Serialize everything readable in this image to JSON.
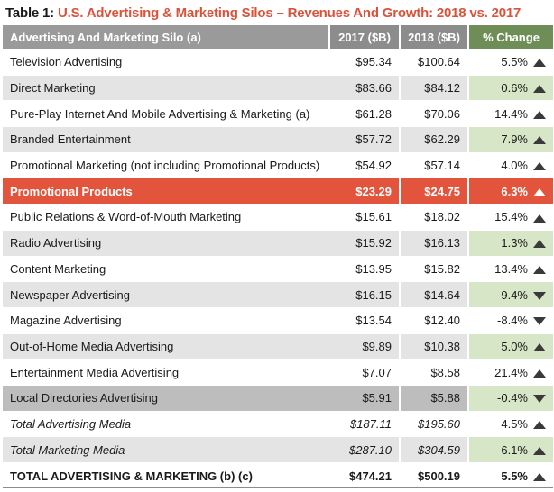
{
  "caption": {
    "lead": "Table 1:",
    "title": "U.S. Advertising & Marketing Silos – Revenues And Growth: 2018 vs. 2017"
  },
  "headers": {
    "silo": "Advertising And Marketing Silo (a)",
    "y2017": "2017 ($B)",
    "y2018": "2018 ($B)",
    "change": "% Change"
  },
  "colors": {
    "accent_red": "#e2543c",
    "header_gray": "#8c8c8c",
    "change_green": "#6f8e57",
    "shade_green": "#d6e6c6"
  },
  "rows": [
    {
      "name": "Television Advertising",
      "v2017": "$95.34",
      "v2018": "$100.64",
      "change": "5.5%",
      "trend": "up-arrow-icon"
    },
    {
      "name": "Direct Marketing",
      "v2017": "$83.66",
      "v2018": "$84.12",
      "change": "0.6%",
      "trend": "up-arrow-icon"
    },
    {
      "name": "Pure-Play Internet And Mobile Advertising & Marketing (a)",
      "v2017": "$61.28",
      "v2018": "$70.06",
      "change": "14.4%",
      "trend": "up-arrow-icon"
    },
    {
      "name": "Branded Entertainment",
      "v2017": "$57.72",
      "v2018": "$62.29",
      "change": "7.9%",
      "trend": "up-arrow-icon"
    },
    {
      "name": "Promotional Marketing (not including Promotional Products)",
      "v2017": "$54.92",
      "v2018": "$57.14",
      "change": "4.0%",
      "trend": "up-arrow-icon"
    },
    {
      "name": "Promotional Products",
      "v2017": "$23.29",
      "v2018": "$24.75",
      "change": "6.3%",
      "trend": "up-arrow-icon"
    },
    {
      "name": "Public Relations & Word-of-Mouth Marketing",
      "v2017": "$15.61",
      "v2018": "$18.02",
      "change": "15.4%",
      "trend": "up-arrow-icon"
    },
    {
      "name": "Radio Advertising",
      "v2017": "$15.92",
      "v2018": "$16.13",
      "change": "1.3%",
      "trend": "up-arrow-icon"
    },
    {
      "name": "Content Marketing",
      "v2017": "$13.95",
      "v2018": "$15.82",
      "change": "13.4%",
      "trend": "up-arrow-icon"
    },
    {
      "name": "Newspaper Advertising",
      "v2017": "$16.15",
      "v2018": "$14.64",
      "change": "-9.4%",
      "trend": "down-arrow-icon"
    },
    {
      "name": "Magazine Advertising",
      "v2017": "$13.54",
      "v2018": "$12.40",
      "change": "-8.4%",
      "trend": "down-arrow-icon"
    },
    {
      "name": "Out-of-Home Media Advertising",
      "v2017": "$9.89",
      "v2018": "$10.38",
      "change": "5.0%",
      "trend": "up-arrow-icon"
    },
    {
      "name": "Entertainment Media Advertising",
      "v2017": "$7.07",
      "v2018": "$8.58",
      "change": "21.4%",
      "trend": "up-arrow-icon"
    },
    {
      "name": "Local Directories Advertising",
      "v2017": "$5.91",
      "v2018": "$5.88",
      "change": "-0.4%",
      "trend": "down-arrow-icon"
    },
    {
      "name": "Total Advertising Media",
      "v2017": "$187.11",
      "v2018": "$195.60",
      "change": "4.5%",
      "trend": "up-arrow-icon"
    },
    {
      "name": "Total Marketing Media",
      "v2017": "$287.10",
      "v2018": "$304.59",
      "change": "6.1%",
      "trend": "up-arrow-icon"
    },
    {
      "name": "TOTAL ADVERTISING & MARKETING (b) (c)",
      "v2017": "$474.21",
      "v2018": "$500.19",
      "change": "5.5%",
      "trend": "up-arrow-icon"
    }
  ]
}
